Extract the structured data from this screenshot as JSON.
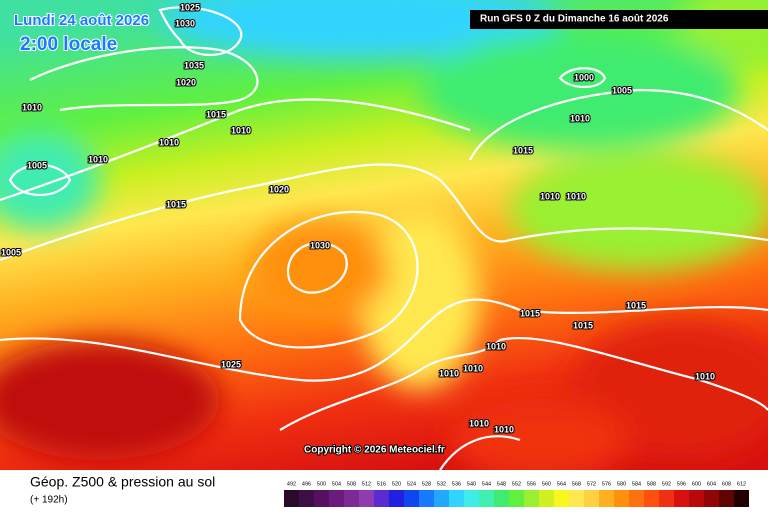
{
  "header": {
    "valid_time": "Lundi 24 août 2026",
    "local_time": "2:00 locale",
    "run": "Run GFS 0 Z du Dimanche 16 août 2026"
  },
  "map": {
    "isobar_labels": [
      "1025",
      "1030",
      "1035",
      "1020",
      "1010",
      "1015",
      "1010",
      "1010",
      "1010",
      "1005",
      "1020",
      "1015",
      "1030",
      "1005",
      "1025",
      "1000",
      "1005",
      "1010",
      "1015",
      "1010",
      "1010",
      "1015",
      "1015",
      "1015",
      "1010",
      "1010",
      "1010",
      "1010",
      "1010",
      "1010"
    ],
    "copyright": "Copyright © 2026 Meteociel.fr"
  },
  "footer": {
    "title": "Géop. Z500 & pression au sol",
    "lead_time": "(+ 192h)"
  },
  "legend": {
    "items": [
      {
        "label": "492",
        "color": "#2a0a2a"
      },
      {
        "label": "496",
        "color": "#3d0d45"
      },
      {
        "label": "500",
        "color": "#55105f"
      },
      {
        "label": "504",
        "color": "#6a1b7c"
      },
      {
        "label": "508",
        "color": "#7d2a96"
      },
      {
        "label": "512",
        "color": "#8e3cb0"
      },
      {
        "label": "516",
        "color": "#5a2bd0"
      },
      {
        "label": "520",
        "color": "#2020e0"
      },
      {
        "label": "524",
        "color": "#1046f0"
      },
      {
        "label": "528",
        "color": "#1a7aff"
      },
      {
        "label": "532",
        "color": "#22a8ff"
      },
      {
        "label": "536",
        "color": "#30d4ff"
      },
      {
        "label": "540",
        "color": "#40ece8"
      },
      {
        "label": "544",
        "color": "#40f0b0"
      },
      {
        "label": "548",
        "color": "#40ec70"
      },
      {
        "label": "552",
        "color": "#60f040"
      },
      {
        "label": "556",
        "color": "#9af030"
      },
      {
        "label": "560",
        "color": "#d0f020"
      },
      {
        "label": "564",
        "color": "#f8f820"
      },
      {
        "label": "568",
        "color": "#ffe850"
      },
      {
        "label": "572",
        "color": "#ffd040"
      },
      {
        "label": "576",
        "color": "#ffb020"
      },
      {
        "label": "580",
        "color": "#ff9010"
      },
      {
        "label": "584",
        "color": "#ff7010"
      },
      {
        "label": "588",
        "color": "#ff5010"
      },
      {
        "label": "592",
        "color": "#f03010"
      },
      {
        "label": "596",
        "color": "#d81010"
      },
      {
        "label": "600",
        "color": "#b80808"
      },
      {
        "label": "604",
        "color": "#900505"
      },
      {
        "label": "608",
        "color": "#600303"
      },
      {
        "label": "612",
        "color": "#200000"
      }
    ]
  }
}
